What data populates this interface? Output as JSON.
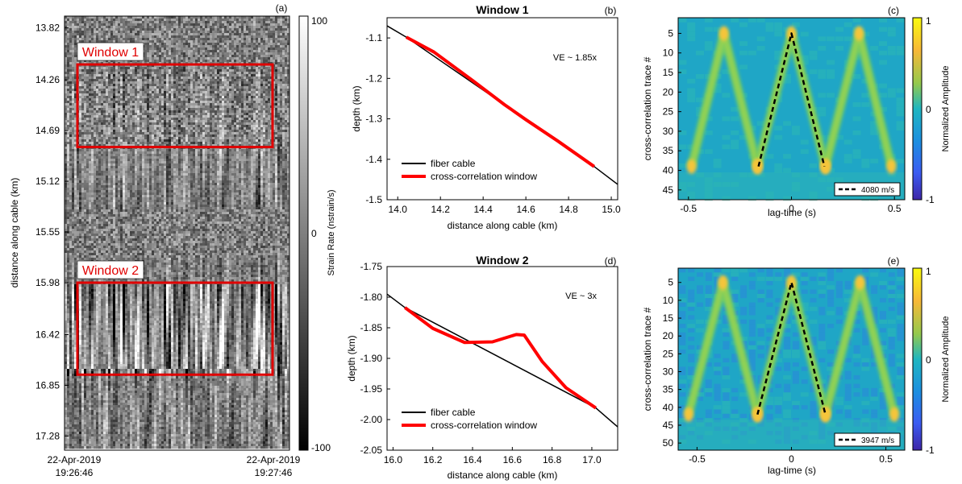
{
  "colors": {
    "cable": "#000000",
    "window": "#ff0000",
    "box": "#e00000",
    "parula_low": "#3e26a8",
    "parula_mid": "#1fb6c0",
    "parula_high": "#f9fb0e",
    "bg_teal": "#22a6c8",
    "ridge_green": "#7ccf5a",
    "ridge_yellow": "#f5c53a"
  },
  "chart_data": [
    {
      "id": "a",
      "type": "heatmap",
      "panel_label": "(a)",
      "ylabel": "distance along cable (km)",
      "yticks": [
        "13.82",
        "14.26",
        "14.69",
        "15.12",
        "15.55",
        "15.98",
        "16.42",
        "16.85",
        "17.28"
      ],
      "xticks": [
        {
          "line1": "22-Apr-2019",
          "line2": "19:26:46"
        },
        {
          "line1": "22-Apr-2019",
          "line2": "19:27:46"
        }
      ],
      "colorbar": {
        "label": "Strain Rate (nstrain/s)",
        "ticks": [
          "100",
          "0",
          "-100"
        ],
        "range": [
          -100,
          100
        ]
      },
      "windows": [
        {
          "label": "Window 1",
          "from_km": 14.13,
          "to_km": 14.83
        },
        {
          "label": "Window 2",
          "from_km": 15.98,
          "to_km": 16.76
        }
      ]
    },
    {
      "id": "b",
      "type": "line",
      "title": "Window 1",
      "panel_label": "(b)",
      "annotation": "VE ~ 1.85x",
      "xlabel": "distance along cable (km)",
      "ylabel": "depth (km)",
      "xlim": [
        13.95,
        15.03
      ],
      "ylim": [
        -1.5,
        -1.05
      ],
      "xticks": [
        "14.0",
        "14.2",
        "14.4",
        "14.6",
        "14.8",
        "15.0"
      ],
      "yticks": [
        "-1.1",
        "-1.2",
        "-1.3",
        "-1.4",
        "-1.5"
      ],
      "legend": [
        "fiber cable",
        "cross-correlation window"
      ],
      "series": [
        {
          "name": "fiber cable",
          "x": [
            13.95,
            14.04,
            14.92,
            15.03
          ],
          "y": [
            -1.07,
            -1.098,
            -1.418,
            -1.462
          ]
        },
        {
          "name": "cross-correlation window",
          "x": [
            14.04,
            14.17,
            14.35,
            14.5,
            14.6,
            14.75,
            14.92
          ],
          "y": [
            -1.098,
            -1.135,
            -1.205,
            -1.265,
            -1.302,
            -1.355,
            -1.418
          ]
        }
      ]
    },
    {
      "id": "c",
      "type": "heatmap",
      "panel_label": "(c)",
      "xlabel": "lag-time (s)",
      "ylabel": "cross-correlation trace #",
      "xlim": [
        -0.55,
        0.55
      ],
      "xticks": [
        "-0.5",
        "0",
        "0.5"
      ],
      "yticks": [
        "5",
        "10",
        "15",
        "20",
        "25",
        "30",
        "35",
        "40",
        "45"
      ],
      "ylim": [
        1,
        47.5
      ],
      "colorbar": {
        "label": "Normalized Amplitude",
        "ticks": [
          "1",
          "0",
          "-1"
        ]
      },
      "legend": "4080 m/s",
      "velocity_m_s": 4080,
      "n_traces": 40,
      "apex_trace": 5,
      "dashed_line": {
        "x": [
          -0.16,
          0,
          0.16
        ],
        "y": [
          39,
          5,
          39
        ]
      },
      "ridges": [
        {
          "x": [
            -0.485,
            -0.328,
            -0.165
          ],
          "y": [
            39,
            5,
            39
          ]
        },
        {
          "x": [
            -0.165,
            0.0,
            0.165
          ],
          "y": [
            39,
            5,
            39
          ]
        },
        {
          "x": [
            0.165,
            0.328,
            0.485
          ],
          "y": [
            39,
            5,
            39
          ]
        }
      ]
    },
    {
      "id": "d",
      "type": "line",
      "title": "Window 2",
      "panel_label": "(d)",
      "annotation": "VE ~ 3x",
      "xlabel": "distance along cable (km)",
      "ylabel": "depth (km)",
      "xlim": [
        15.97,
        17.13
      ],
      "ylim": [
        -2.05,
        -1.75
      ],
      "xticks": [
        "16.0",
        "16.2",
        "16.4",
        "16.6",
        "16.8",
        "17.0"
      ],
      "yticks": [
        "-1.75",
        "-1.80",
        "-1.85",
        "-1.90",
        "-1.95",
        "-2.00",
        "-2.05"
      ],
      "legend": [
        "fiber cable",
        "cross-correlation window"
      ],
      "series": [
        {
          "name": "fiber cable",
          "x": [
            15.97,
            16.06,
            17.02,
            17.13
          ],
          "y": [
            -1.795,
            -1.817,
            -1.981,
            -2.012
          ]
        },
        {
          "name": "cross-correlation window",
          "x": [
            16.06,
            16.2,
            16.36,
            16.5,
            16.62,
            16.66,
            16.75,
            16.87,
            17.02
          ],
          "y": [
            -1.817,
            -1.851,
            -1.874,
            -1.873,
            -1.861,
            -1.862,
            -1.905,
            -1.948,
            -1.981
          ]
        }
      ]
    },
    {
      "id": "e",
      "type": "heatmap",
      "panel_label": "(e)",
      "xlabel": "lag-time (s)",
      "ylabel": "cross-correlation trace #",
      "xlim": [
        -0.6,
        0.6
      ],
      "xticks": [
        "-0.5",
        "0",
        "0.5"
      ],
      "yticks": [
        "5",
        "10",
        "15",
        "20",
        "25",
        "30",
        "35",
        "40",
        "45",
        "50"
      ],
      "ylim": [
        1,
        52
      ],
      "colorbar": {
        "label": "Normalized Amplitude",
        "ticks": [
          "1",
          "0",
          "-1"
        ]
      },
      "legend": "3947 m/s",
      "velocity_m_s": 3947,
      "n_traces": 43,
      "apex_trace": 5,
      "dashed_line": {
        "x": [
          -0.18,
          0,
          0.18
        ],
        "y": [
          42,
          5,
          42
        ]
      },
      "ridges": [
        {
          "x": [
            -0.545,
            -0.363,
            -0.18
          ],
          "y": [
            42,
            5,
            42
          ]
        },
        {
          "x": [
            -0.18,
            0.0,
            0.18
          ],
          "y": [
            42,
            5,
            42
          ]
        },
        {
          "x": [
            0.18,
            0.363,
            0.545
          ],
          "y": [
            42,
            5,
            42
          ]
        }
      ]
    }
  ]
}
